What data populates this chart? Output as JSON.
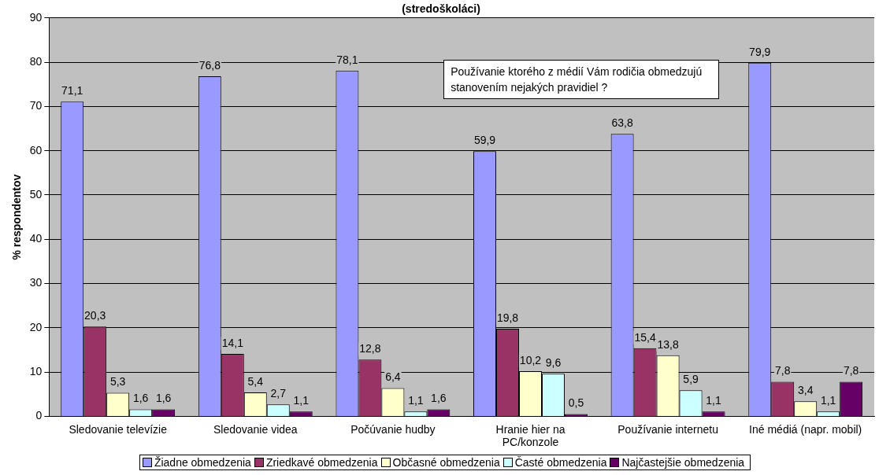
{
  "chart_data": {
    "type": "bar",
    "title": "(stredoškoláci)",
    "ylabel": "% respondentov",
    "categories": [
      "Sledovanie televízie",
      "Sledovanie videa",
      "Počúvanie hudby",
      "Hranie hier na PC/konzole",
      "Používanie internetu",
      "Iné médiá (napr. mobil)"
    ],
    "series": [
      {
        "name": "Žiadne obmedzenia",
        "color": "#9999ff",
        "values": [
          71.1,
          76.8,
          78.1,
          59.9,
          63.8,
          79.9
        ],
        "value_labels": [
          "71,1",
          "76,8",
          "78,1",
          "59,9",
          "63,8",
          "79,9"
        ]
      },
      {
        "name": "Zriedkavé obmedzenia",
        "color": "#993366",
        "values": [
          20.3,
          14.1,
          12.8,
          19.8,
          15.4,
          7.8
        ],
        "value_labels": [
          "20,3",
          "14,1",
          "12,8",
          "19,8",
          "15,4",
          "7,8"
        ]
      },
      {
        "name": "Občasné obmedzenia",
        "color": "#ffffcc",
        "values": [
          5.3,
          5.4,
          6.4,
          10.2,
          13.8,
          3.4
        ],
        "value_labels": [
          "5,3",
          "5,4",
          "6,4",
          "10,2",
          "13,8",
          "3,4"
        ]
      },
      {
        "name": "Časté obmedzenia",
        "color": "#ccffff",
        "values": [
          1.6,
          2.7,
          1.1,
          9.6,
          5.9,
          1.1
        ],
        "value_labels": [
          "1,6",
          "2,7",
          "1,1",
          "9,6",
          "5,9",
          "1,1"
        ]
      },
      {
        "name": "Najčastejšie obmedzenia",
        "color": "#660066",
        "values": [
          1.6,
          1.1,
          1.6,
          0.5,
          1.1,
          7.8
        ],
        "value_labels": [
          "1,6",
          "1,1",
          "1,6",
          "0,5",
          "1,1",
          "7,8"
        ]
      }
    ],
    "annotations": [
      "Používanie ktorého z médií Vám rodičia obmedzujú stanovením nejakých pravidiel ?"
    ],
    "ylim": [
      0,
      90
    ],
    "yticks": [
      0,
      10,
      20,
      30,
      40,
      50,
      60,
      70,
      80,
      90
    ],
    "grid": "y",
    "legend": "bottom"
  }
}
